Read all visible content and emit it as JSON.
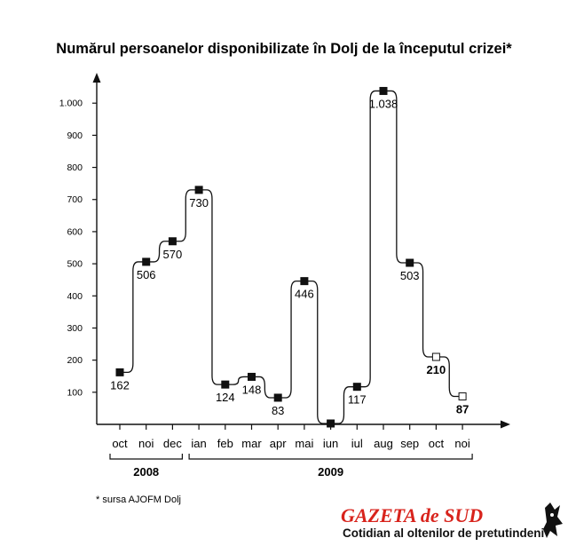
{
  "chart_data": {
    "type": "line",
    "title": "Numărul persoanelor disponibilizate în Dolj de la începutul crizei*",
    "categories": [
      "oct",
      "noi",
      "dec",
      "ian",
      "feb",
      "mar",
      "apr",
      "mai",
      "iun",
      "iul",
      "aug",
      "sep",
      "oct",
      "noi"
    ],
    "values": [
      162,
      506,
      570,
      730,
      124,
      148,
      83,
      446,
      null,
      117,
      1038,
      503,
      210,
      87
    ],
    "value_labels": [
      "162",
      "506",
      "570",
      "730",
      "124",
      "148",
      "83",
      "446",
      "",
      "117",
      "1.038",
      "503",
      "210",
      "87"
    ],
    "yticks": [
      100,
      200,
      300,
      400,
      500,
      600,
      700,
      800,
      900,
      1000
    ],
    "ytick_labels": [
      "100",
      "200",
      "300",
      "400",
      "500",
      "600",
      "700",
      "800",
      "900",
      "1.000"
    ],
    "ylim": [
      0,
      1100
    ],
    "years": [
      {
        "label": "2008",
        "from": 0,
        "to": 2
      },
      {
        "label": "2009",
        "from": 3,
        "to": 13
      }
    ],
    "highlight_indices": [
      12,
      13
    ],
    "grid": false,
    "legend": "none"
  },
  "source_note": "* sursa AJOFM Dolj",
  "logo": {
    "name": "GAZETA de SUD",
    "tagline": "Cotidian al oltenilor de pretutindeni"
  },
  "colors": {
    "line": "#111111",
    "logo_red": "#d8231c"
  }
}
